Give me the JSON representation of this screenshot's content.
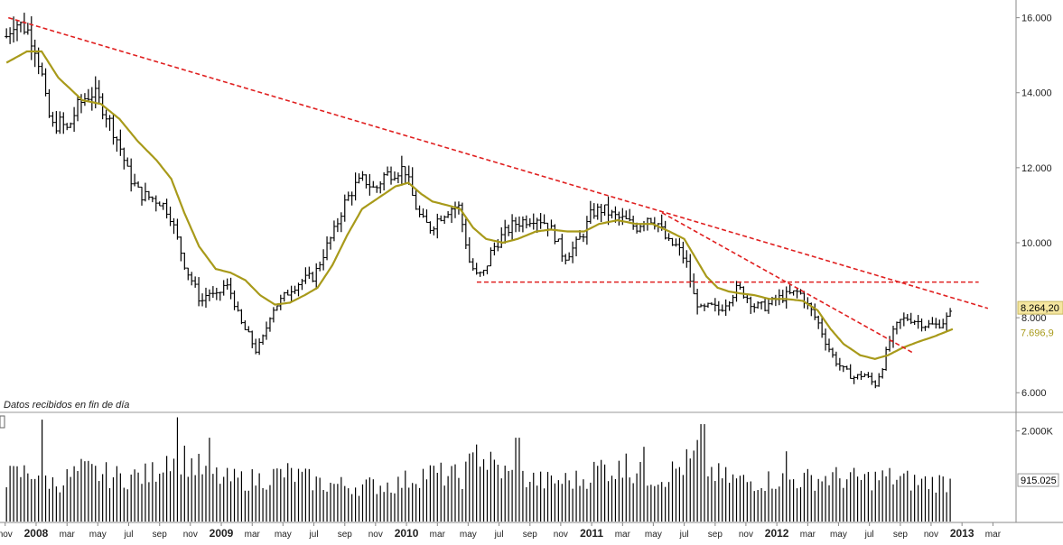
{
  "note": "Datos recibidos en fin de día",
  "chart_data": [
    {
      "type": "ohlc",
      "panel": "price",
      "y_axis_ticks": [
        "16.000",
        "14.000",
        "12.000",
        "10.000",
        "8.000",
        "6.000"
      ],
      "y_tick_values": [
        16000,
        14000,
        12000,
        10000,
        8000,
        6000
      ],
      "ylim": [
        5500,
        16400
      ],
      "last_price_label": "8.264,20",
      "moving_average_label": "7.696,9",
      "price_anchors": [
        [
          2007.84,
          15500
        ],
        [
          2007.88,
          15900
        ],
        [
          2007.95,
          15700
        ],
        [
          2007.99,
          15300
        ],
        [
          2008.03,
          14500
        ],
        [
          2008.06,
          13500
        ],
        [
          2008.09,
          13100
        ],
        [
          2008.13,
          13200
        ],
        [
          2008.17,
          13000
        ],
        [
          2008.22,
          13600
        ],
        [
          2008.27,
          13900
        ],
        [
          2008.31,
          14000
        ],
        [
          2008.35,
          13700
        ],
        [
          2008.4,
          13200
        ],
        [
          2008.45,
          12600
        ],
        [
          2008.5,
          11800
        ],
        [
          2008.56,
          11300
        ],
        [
          2008.62,
          11200
        ],
        [
          2008.67,
          11100
        ],
        [
          2008.72,
          10800
        ],
        [
          2008.78,
          9800
        ],
        [
          2008.81,
          9300
        ],
        [
          2008.85,
          8900
        ],
        [
          2008.89,
          8400
        ],
        [
          2008.93,
          8700
        ],
        [
          2008.97,
          8500
        ],
        [
          2009.02,
          8900
        ],
        [
          2009.06,
          8600
        ],
        [
          2009.1,
          7900
        ],
        [
          2009.15,
          7500
        ],
        [
          2009.19,
          7100
        ],
        [
          2009.23,
          7500
        ],
        [
          2009.27,
          8200
        ],
        [
          2009.33,
          8500
        ],
        [
          2009.38,
          8800
        ],
        [
          2009.44,
          9000
        ],
        [
          2009.5,
          9100
        ],
        [
          2009.56,
          9800
        ],
        [
          2009.61,
          10300
        ],
        [
          2009.66,
          11000
        ],
        [
          2009.72,
          11500
        ],
        [
          2009.77,
          11700
        ],
        [
          2009.83,
          11400
        ],
        [
          2009.88,
          11800
        ],
        [
          2009.94,
          11900
        ],
        [
          2009.99,
          12000
        ],
        [
          2010.04,
          11100
        ],
        [
          2010.08,
          10600
        ],
        [
          2010.13,
          10400
        ],
        [
          2010.18,
          10700
        ],
        [
          2010.23,
          10900
        ],
        [
          2010.28,
          11000
        ],
        [
          2010.31,
          10300
        ],
        [
          2010.34,
          9500
        ],
        [
          2010.38,
          9100
        ],
        [
          2010.42,
          9200
        ],
        [
          2010.46,
          9800
        ],
        [
          2010.52,
          10200
        ],
        [
          2010.58,
          10500
        ],
        [
          2010.64,
          10600
        ],
        [
          2010.7,
          10700
        ],
        [
          2010.76,
          10500
        ],
        [
          2010.8,
          10200
        ],
        [
          2010.85,
          9600
        ],
        [
          2010.91,
          9900
        ],
        [
          2010.96,
          10300
        ],
        [
          2011.0,
          10800
        ],
        [
          2011.06,
          10900
        ],
        [
          2011.12,
          10700
        ],
        [
          2011.18,
          10600
        ],
        [
          2011.24,
          10400
        ],
        [
          2011.3,
          10700
        ],
        [
          2011.36,
          10500
        ],
        [
          2011.41,
          10000
        ],
        [
          2011.46,
          9900
        ],
        [
          2011.51,
          9500
        ],
        [
          2011.55,
          8600
        ],
        [
          2011.59,
          8200
        ],
        [
          2011.64,
          8300
        ],
        [
          2011.69,
          8200
        ],
        [
          2011.74,
          8500
        ],
        [
          2011.79,
          8800
        ],
        [
          2011.83,
          8600
        ],
        [
          2011.88,
          8300
        ],
        [
          2011.94,
          8300
        ],
        [
          2012.0,
          8500
        ],
        [
          2012.06,
          8600
        ],
        [
          2012.12,
          8700
        ],
        [
          2012.17,
          8300
        ],
        [
          2012.22,
          7900
        ],
        [
          2012.27,
          7300
        ],
        [
          2012.31,
          6900
        ],
        [
          2012.36,
          6600
        ],
        [
          2012.42,
          6400
        ],
        [
          2012.47,
          6500
        ],
        [
          2012.53,
          6200
        ],
        [
          2012.57,
          6700
        ],
        [
          2012.61,
          7400
        ],
        [
          2012.66,
          7900
        ],
        [
          2012.71,
          8000
        ],
        [
          2012.76,
          7900
        ],
        [
          2012.81,
          7800
        ],
        [
          2012.86,
          7800
        ],
        [
          2012.9,
          7900
        ],
        [
          2012.94,
          8100
        ],
        [
          2012.95,
          8264
        ]
      ],
      "moving_average": [
        [
          2007.84,
          14800
        ],
        [
          2007.95,
          15100
        ],
        [
          2008.03,
          15100
        ],
        [
          2008.12,
          14400
        ],
        [
          2008.25,
          13800
        ],
        [
          2008.35,
          13700
        ],
        [
          2008.45,
          13300
        ],
        [
          2008.55,
          12700
        ],
        [
          2008.65,
          12200
        ],
        [
          2008.73,
          11700
        ],
        [
          2008.8,
          10800
        ],
        [
          2008.88,
          9900
        ],
        [
          2008.97,
          9300
        ],
        [
          2009.05,
          9200
        ],
        [
          2009.13,
          9000
        ],
        [
          2009.21,
          8600
        ],
        [
          2009.29,
          8350
        ],
        [
          2009.37,
          8400
        ],
        [
          2009.45,
          8600
        ],
        [
          2009.52,
          8800
        ],
        [
          2009.6,
          9400
        ],
        [
          2009.68,
          10200
        ],
        [
          2009.76,
          10900
        ],
        [
          2009.85,
          11200
        ],
        [
          2009.94,
          11500
        ],
        [
          2010.01,
          11600
        ],
        [
          2010.08,
          11300
        ],
        [
          2010.14,
          11100
        ],
        [
          2010.22,
          11000
        ],
        [
          2010.29,
          10900
        ],
        [
          2010.36,
          10400
        ],
        [
          2010.43,
          10100
        ],
        [
          2010.52,
          10000
        ],
        [
          2010.6,
          10100
        ],
        [
          2010.7,
          10300
        ],
        [
          2010.78,
          10350
        ],
        [
          2010.87,
          10300
        ],
        [
          2010.96,
          10300
        ],
        [
          2011.04,
          10500
        ],
        [
          2011.14,
          10600
        ],
        [
          2011.24,
          10500
        ],
        [
          2011.33,
          10500
        ],
        [
          2011.42,
          10300
        ],
        [
          2011.5,
          10100
        ],
        [
          2011.56,
          9600
        ],
        [
          2011.62,
          9100
        ],
        [
          2011.68,
          8800
        ],
        [
          2011.74,
          8700
        ],
        [
          2011.8,
          8650
        ],
        [
          2011.88,
          8600
        ],
        [
          2011.96,
          8500
        ],
        [
          2012.05,
          8500
        ],
        [
          2012.14,
          8450
        ],
        [
          2012.22,
          8200
        ],
        [
          2012.29,
          7700
        ],
        [
          2012.36,
          7300
        ],
        [
          2012.45,
          7000
        ],
        [
          2012.53,
          6900
        ],
        [
          2012.6,
          7000
        ],
        [
          2012.68,
          7200
        ],
        [
          2012.76,
          7350
        ],
        [
          2012.85,
          7500
        ],
        [
          2012.95,
          7697
        ]
      ],
      "trend_lines": [
        {
          "style": "red-dashed",
          "from": [
            2007.85,
            16000
          ],
          "to": [
            2013.14,
            8250
          ]
        },
        {
          "style": "red-dashed",
          "from": [
            2011.38,
            10800
          ],
          "to": [
            2012.74,
            7050
          ]
        },
        {
          "style": "red-dashed",
          "from": [
            2010.38,
            8950
          ],
          "to": [
            2013.09,
            8950
          ]
        }
      ]
    },
    {
      "type": "bar",
      "panel": "volume",
      "y_axis_ticks": [
        "2.000K"
      ],
      "y_tick_values": [
        2000
      ],
      "ylim": [
        0,
        2350
      ],
      "last_volume_label": "915.025",
      "last_volume": 915,
      "volume_anchors": [
        [
          2007.84,
          1000
        ],
        [
          2007.99,
          1150
        ],
        [
          2008.1,
          850
        ],
        [
          2008.25,
          1150
        ],
        [
          2008.45,
          1000
        ],
        [
          2008.62,
          1050
        ],
        [
          2008.73,
          1600
        ],
        [
          2008.9,
          1150
        ],
        [
          2009.02,
          950
        ],
        [
          2009.2,
          950
        ],
        [
          2009.35,
          1100
        ],
        [
          2009.55,
          850
        ],
        [
          2009.75,
          800
        ],
        [
          2009.95,
          850
        ],
        [
          2010.1,
          1100
        ],
        [
          2010.3,
          1000
        ],
        [
          2010.38,
          1500
        ],
        [
          2010.55,
          1050
        ],
        [
          2010.75,
          900
        ],
        [
          2010.95,
          950
        ],
        [
          2011.05,
          1250
        ],
        [
          2011.2,
          1100
        ],
        [
          2011.38,
          1000
        ],
        [
          2011.55,
          1400
        ],
        [
          2011.7,
          1000
        ],
        [
          2011.85,
          900
        ],
        [
          2012.0,
          950
        ],
        [
          2012.15,
          950
        ],
        [
          2012.3,
          1000
        ],
        [
          2012.45,
          950
        ],
        [
          2012.6,
          1000
        ],
        [
          2012.75,
          900
        ],
        [
          2012.95,
          900
        ]
      ],
      "spikes": [
        [
          2008.03,
          2250
        ],
        [
          2008.76,
          2300
        ],
        [
          2008.94,
          1850
        ],
        [
          2010.38,
          1700
        ],
        [
          2010.6,
          1850
        ],
        [
          2011.28,
          1650
        ],
        [
          2011.58,
          1800
        ],
        [
          2011.6,
          2150
        ],
        [
          2011.18,
          1500
        ],
        [
          2012.05,
          1550
        ]
      ]
    }
  ],
  "x_axis_labels": [
    "nov",
    "2008",
    "mar",
    "may",
    "jul",
    "sep",
    "nov",
    "2009",
    "mar",
    "may",
    "jul",
    "sep",
    "nov",
    "2010",
    "mar",
    "may",
    "jul",
    "sep",
    "nov",
    "2011",
    "mar",
    "may",
    "jul",
    "sep",
    "nov",
    "2012",
    "mar",
    "may",
    "jul",
    "sep",
    "nov",
    "2013",
    "mar"
  ],
  "x_axis_dates": [
    2007.833,
    2008.0,
    2008.167,
    2008.333,
    2008.5,
    2008.667,
    2008.833,
    2009.0,
    2009.167,
    2009.333,
    2009.5,
    2009.667,
    2009.833,
    2010.0,
    2010.167,
    2010.333,
    2010.5,
    2010.667,
    2010.833,
    2011.0,
    2011.167,
    2011.333,
    2011.5,
    2011.667,
    2011.833,
    2012.0,
    2012.167,
    2012.333,
    2012.5,
    2012.667,
    2012.833,
    2013.0,
    2013.167
  ],
  "x_axis_bold": [
    "2008",
    "2009",
    "2010",
    "2011",
    "2012",
    "2013"
  ],
  "colors": {
    "price_bars": "#000000",
    "moving_average": "#a89a1a",
    "trend_lines": "#e02020",
    "volume_bars": "#000000",
    "last_price_bg": "#f5e6a0",
    "axis": "#888888"
  }
}
